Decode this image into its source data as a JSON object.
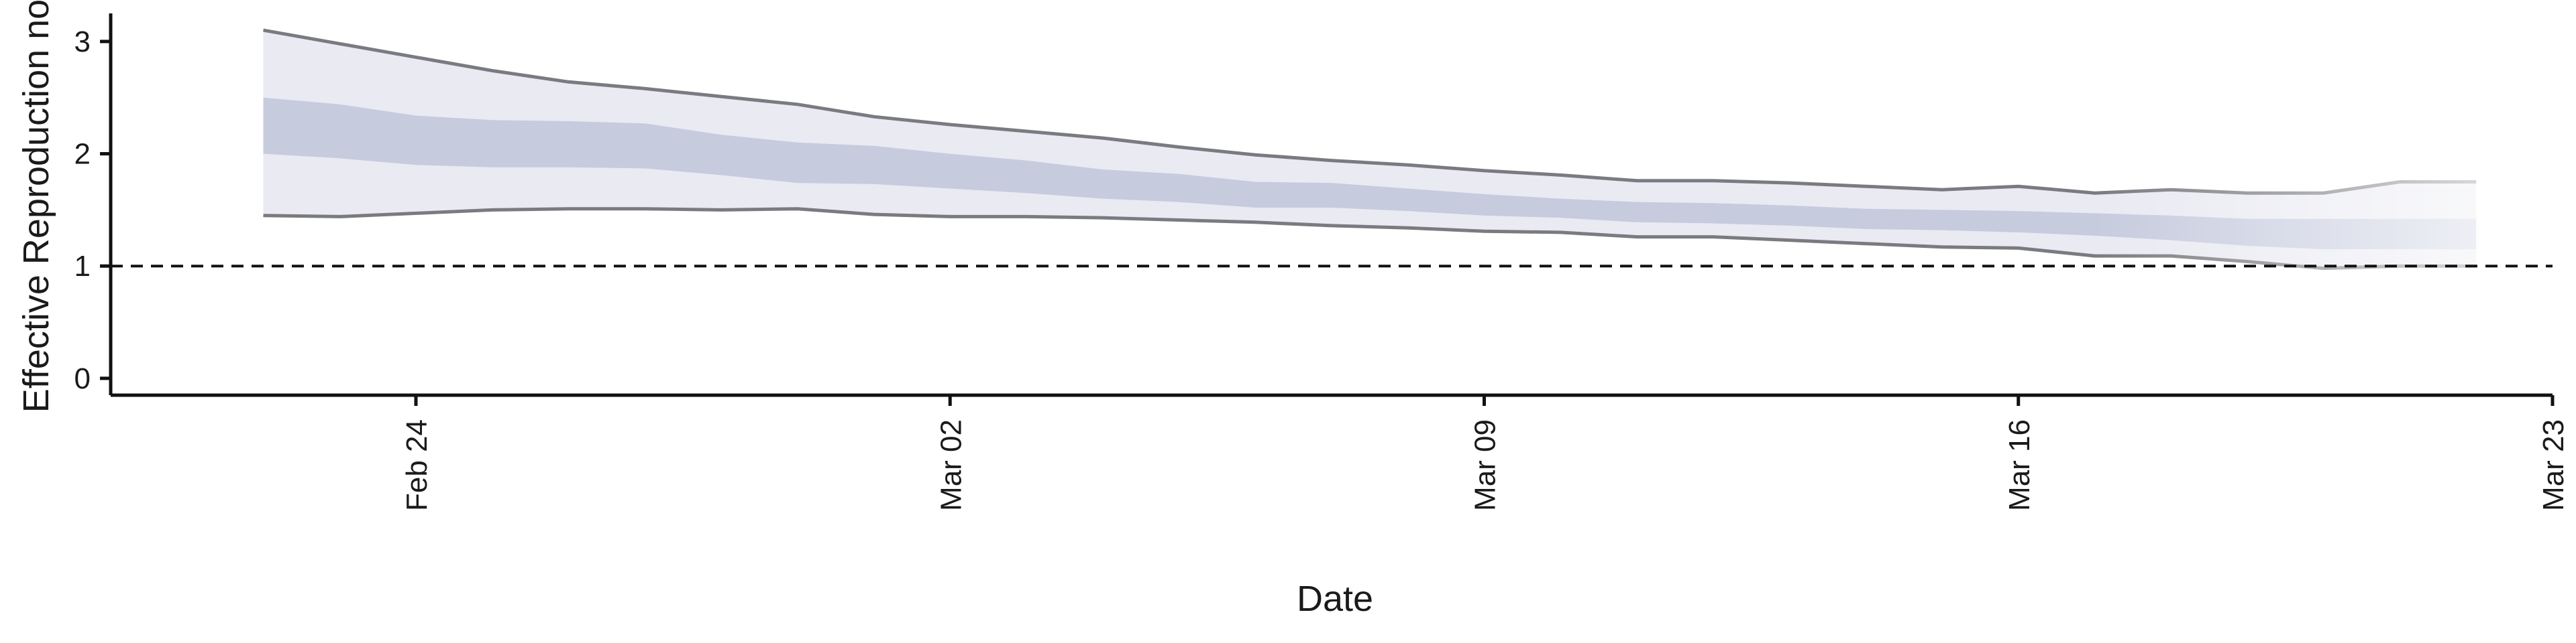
{
  "chart_data": {
    "type": "area",
    "xlabel": "Date",
    "ylabel": "Effective Reproduction no.",
    "x_range": [
      "2020-02-20",
      "2020-03-23"
    ],
    "ylim": [
      -0.15,
      3.25
    ],
    "y_ticks": [
      0,
      1,
      2,
      3
    ],
    "x_ticks": [
      {
        "date": "2020-02-24",
        "label": "Feb 24"
      },
      {
        "date": "2020-03-02",
        "label": "Mar 02"
      },
      {
        "date": "2020-03-09",
        "label": "Mar 09"
      },
      {
        "date": "2020-03-16",
        "label": "Mar 16"
      },
      {
        "date": "2020-03-23",
        "label": "Mar 23"
      }
    ],
    "reference_line": {
      "y": 1,
      "style": "dashed"
    },
    "grid": false,
    "dates": [
      "2020-02-22",
      "2020-02-23",
      "2020-02-24",
      "2020-02-25",
      "2020-02-26",
      "2020-02-27",
      "2020-02-28",
      "2020-02-29",
      "2020-03-01",
      "2020-03-02",
      "2020-03-03",
      "2020-03-04",
      "2020-03-05",
      "2020-03-06",
      "2020-03-07",
      "2020-03-08",
      "2020-03-09",
      "2020-03-10",
      "2020-03-11",
      "2020-03-12",
      "2020-03-13",
      "2020-03-14",
      "2020-03-15",
      "2020-03-16",
      "2020-03-17",
      "2020-03-18",
      "2020-03-19",
      "2020-03-20",
      "2020-03-21",
      "2020-03-22"
    ],
    "series": [
      {
        "values_upper_90": [
          3.1,
          2.98,
          2.86,
          2.74,
          2.64,
          2.58,
          2.51,
          2.44,
          2.33,
          2.26,
          2.2,
          2.14,
          2.06,
          1.99,
          1.94,
          1.9,
          1.85,
          1.81,
          1.76,
          1.76,
          1.74,
          1.71,
          1.68,
          1.71,
          1.65,
          1.68,
          1.65,
          1.65,
          1.75,
          1.75
        ],
        "values_lower_90": [
          1.45,
          1.44,
          1.47,
          1.5,
          1.51,
          1.51,
          1.5,
          1.51,
          1.46,
          1.44,
          1.44,
          1.43,
          1.41,
          1.39,
          1.36,
          1.34,
          1.31,
          1.3,
          1.26,
          1.26,
          1.23,
          1.2,
          1.17,
          1.16,
          1.09,
          1.09,
          1.04,
          0.98,
          1.0,
          1.0
        ],
        "values_upper_50": [
          2.5,
          2.44,
          2.34,
          2.3,
          2.29,
          2.27,
          2.17,
          2.1,
          2.07,
          2.0,
          1.94,
          1.86,
          1.82,
          1.75,
          1.74,
          1.69,
          1.64,
          1.6,
          1.57,
          1.56,
          1.54,
          1.51,
          1.5,
          1.49,
          1.47,
          1.45,
          1.42,
          1.42,
          1.42,
          1.42
        ],
        "values_lower_50": [
          2.0,
          1.96,
          1.9,
          1.88,
          1.88,
          1.87,
          1.81,
          1.74,
          1.73,
          1.69,
          1.65,
          1.6,
          1.57,
          1.52,
          1.52,
          1.49,
          1.45,
          1.43,
          1.39,
          1.38,
          1.36,
          1.33,
          1.32,
          1.3,
          1.27,
          1.23,
          1.18,
          1.15,
          1.15,
          1.15
        ]
      }
    ],
    "colors": {
      "band_90": "#e9eaf2",
      "band_50": "#c6cbde",
      "band_edge": "#7a7a80",
      "axis": "#111111",
      "reference": "#111111"
    }
  }
}
